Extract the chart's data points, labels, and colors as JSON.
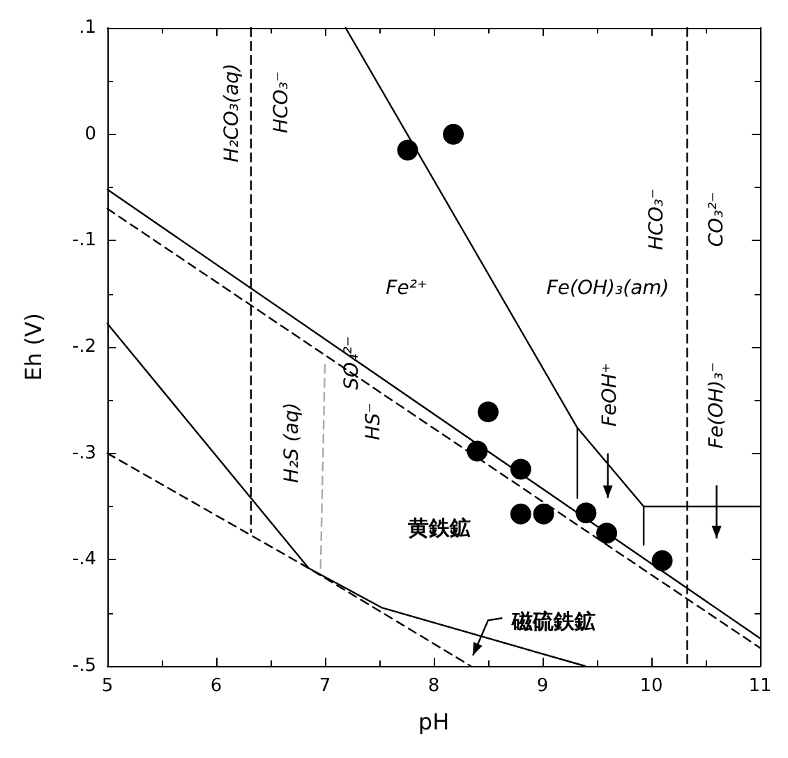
{
  "chart_data": {
    "type": "line",
    "xlabel": "pH",
    "ylabel": "Eh (V)",
    "xlim": [
      5,
      11
    ],
    "xticks": [
      5,
      6,
      7,
      8,
      9,
      10,
      11
    ],
    "ylim": [
      -0.5,
      0.1
    ],
    "yticks": [
      {
        "value": -0.5,
        "label": "-.5"
      },
      {
        "value": -0.4,
        "label": "-.4"
      },
      {
        "value": -0.3,
        "label": "-.3"
      },
      {
        "value": -0.2,
        "label": "-.2"
      },
      {
        "value": -0.1,
        "label": "-.1"
      },
      0,
      {
        "value": 0.1,
        "label": ".1"
      }
    ],
    "grid": false,
    "marker": "none",
    "series": [
      {
        "color": "#000000",
        "line_style": "solid",
        "x": [
          7.19,
          9.32,
          9.93,
          11
        ],
        "values": [
          0.1,
          -0.276,
          -0.35,
          -0.35
        ]
      },
      {
        "color": "#000000",
        "line_style": "solid",
        "x": [
          9.32,
          9.32
        ],
        "values": [
          -0.276,
          -0.342
        ]
      },
      {
        "color": "#000000",
        "line_style": "solid",
        "x": [
          9.93,
          9.93
        ],
        "values": [
          -0.35,
          -0.386
        ]
      },
      {
        "color": "#000000",
        "line_style": "solid",
        "x": [
          5,
          11
        ],
        "values": [
          -0.052,
          -0.474
        ]
      },
      {
        "color": "#000000",
        "line_style": "dashed",
        "x": [
          5,
          11
        ],
        "values": [
          -0.07,
          -0.483
        ]
      },
      {
        "color": "#000000",
        "line_style": "solid",
        "x": [
          5,
          6.85,
          7.52,
          9.39
        ],
        "values": [
          -0.178,
          -0.408,
          -0.445,
          -0.5
        ]
      },
      {
        "color": "#000000",
        "line_style": "dashed",
        "x": [
          5,
          6.85,
          8.34
        ],
        "values": [
          -0.3,
          -0.408,
          -0.5
        ]
      },
      {
        "color": "#000000",
        "line_style": "dashed",
        "x": [
          6.32,
          6.32
        ],
        "values": [
          0.1,
          -0.374
        ]
      },
      {
        "color": "#000000",
        "line_style": "dashed",
        "x": [
          10.33,
          10.33
        ],
        "values": [
          0.1,
          -0.5
        ]
      },
      {
        "color": "#aaaaaa",
        "line_style": "dashed",
        "x": [
          6.96,
          7.0
        ],
        "values": [
          -0.408,
          -0.215
        ]
      },
      {
        "type": "scatter",
        "color": "#000000",
        "marker": "circle",
        "x": [
          7.76,
          8.18,
          8.5,
          8.4,
          8.8,
          8.8,
          9.01,
          9.4,
          9.59,
          10.1
        ],
        "values": [
          -0.015,
          0.0,
          -0.261,
          -0.298,
          -0.315,
          -0.357,
          -0.357,
          -0.356,
          -0.375,
          -0.401
        ]
      }
    ],
    "annotations": [
      "H₂CO₃(aq)",
      "HCO₃⁻",
      "Fe²⁺",
      "Fe(OH)₃(am)",
      "HCO₃⁻",
      "CO₃²⁻",
      "SO₄²⁻",
      "H₂S (aq)",
      "HS⁻",
      "FeOH⁺",
      "Fe(OH)₃⁻",
      "黄鉄鉱",
      "磁硫鉄鉱"
    ]
  }
}
